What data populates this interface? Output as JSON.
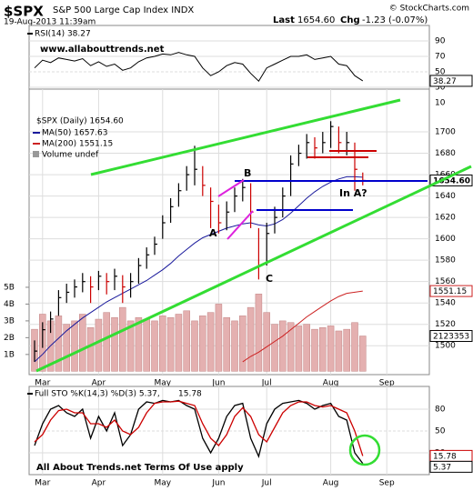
{
  "header": {
    "ticker": "$SPX",
    "name": "S&P 500 Large Cap Index INDX",
    "date": "19-Aug-2013 11:39am",
    "source": "© StockCharts.com",
    "last_label": "Last",
    "last": "1654.60",
    "chg_label": "Chg",
    "chg": "-1.23 (-0.07%)"
  },
  "chart_data": [
    {
      "type": "line",
      "legend": "RSI(14) 38.27",
      "annotation": "www.allabouttrends.net",
      "color": "#000000",
      "values": [
        55,
        65,
        62,
        68,
        66,
        64,
        67,
        58,
        63,
        57,
        60,
        52,
        55,
        63,
        68,
        70,
        73,
        72,
        75,
        72,
        70,
        55,
        45,
        50,
        58,
        62,
        60,
        48,
        38,
        55,
        60,
        65,
        70,
        70,
        72,
        66,
        68,
        70,
        60,
        58,
        45,
        38.27,
        null,
        null,
        null,
        null,
        null,
        null,
        null
      ],
      "value_label": "38.27",
      "ylim": [
        27.6,
        110
      ],
      "yticks": [
        10,
        30,
        50,
        70,
        90
      ],
      "grid": true
    },
    {
      "type": "ohlc",
      "legend": "$SPX (Daily) 1654.60",
      "categories": [
        null,
        "Mar",
        null,
        null,
        null,
        null,
        null,
        null,
        "Apr",
        null,
        null,
        null,
        null,
        null,
        null,
        null,
        "May",
        null,
        null,
        null,
        null,
        null,
        null,
        "Jun",
        null,
        null,
        null,
        null,
        null,
        "Jul",
        null,
        null,
        null,
        null,
        null,
        null,
        null,
        "Aug",
        null,
        null,
        null,
        null,
        null,
        null,
        "Sep",
        null,
        null,
        null,
        null
      ],
      "high": [
        1505,
        1522,
        1532,
        1552,
        1558,
        1562,
        1568,
        1565,
        1570,
        1568,
        1572,
        1566,
        1568,
        1582,
        1592,
        1602,
        1622,
        1638,
        1652,
        1668,
        1687,
        1668,
        1648,
        1632,
        1635,
        1648,
        1656,
        1652,
        1610,
        1615,
        1630,
        1648,
        1678,
        1688,
        1698,
        1695,
        1700,
        1710,
        1705,
        1700,
        1690,
        1662,
        null,
        null,
        null,
        null,
        null,
        null,
        null
      ],
      "low": [
        1485,
        1498,
        1512,
        1528,
        1540,
        1545,
        1550,
        1540,
        1552,
        1548,
        1552,
        1540,
        1545,
        1558,
        1572,
        1585,
        1600,
        1615,
        1630,
        1645,
        1650,
        1640,
        1610,
        1605,
        1608,
        1625,
        1635,
        1610,
        1562,
        1575,
        1605,
        1620,
        1640,
        1668,
        1675,
        1675,
        1680,
        1685,
        1680,
        1678,
        1645,
        1650,
        null,
        null,
        null,
        null,
        null,
        null,
        null
      ],
      "close": [
        1495,
        1515,
        1525,
        1545,
        1550,
        1555,
        1560,
        1555,
        1565,
        1560,
        1565,
        1555,
        1560,
        1575,
        1585,
        1595,
        1615,
        1630,
        1645,
        1660,
        1665,
        1650,
        1635,
        1615,
        1625,
        1640,
        1648,
        1625,
        1575,
        1605,
        1620,
        1640,
        1670,
        1680,
        1690,
        1685,
        1690,
        1705,
        1690,
        1690,
        1665,
        1654.6,
        null,
        null,
        null,
        null,
        null,
        null,
        null
      ],
      "up_color": "#000000",
      "down_color": "#cc0000",
      "value_label": "1654.60",
      "series": [
        {
          "name": "MA(50) 1657.63",
          "color": "#1a1a9c",
          "values": [
            1485,
            1492,
            1500,
            1507,
            1514,
            1520,
            1526,
            1531,
            1536,
            1541,
            1545,
            1549,
            1553,
            1557,
            1561,
            1566,
            1571,
            1577,
            1584,
            1590,
            1596,
            1601,
            1604,
            1607,
            1610,
            1612,
            1614,
            1615,
            1613,
            1612,
            1614,
            1618,
            1624,
            1631,
            1638,
            1644,
            1649,
            1653,
            1656,
            1658,
            1658,
            1657.63,
            null,
            null,
            null,
            null,
            null,
            null,
            null
          ]
        },
        {
          "name": "MA(200) 1551.15",
          "color": "#cc2222",
          "value_label": "1551.15",
          "values": [
            null,
            null,
            null,
            null,
            null,
            null,
            null,
            null,
            null,
            null,
            null,
            null,
            null,
            null,
            null,
            null,
            null,
            null,
            null,
            null,
            null,
            null,
            null,
            null,
            null,
            null,
            1485,
            1490,
            1494,
            1499,
            1504,
            1509,
            1515,
            1521,
            1527,
            1532,
            1537,
            1542,
            1546,
            1549,
            1550,
            1551.15,
            null,
            null,
            null,
            null,
            null,
            null,
            null
          ]
        }
      ],
      "volume": {
        "name": "Volume undef",
        "color": "#e4b0b0",
        "value_label": "2123353",
        "values": [
          2.5,
          3.4,
          3.0,
          3.3,
          2.8,
          3.0,
          3.4,
          2.6,
          3.1,
          3.5,
          3.2,
          3.8,
          3.0,
          3.2,
          3.1,
          3.0,
          3.3,
          3.2,
          3.4,
          3.6,
          3.0,
          3.3,
          3.5,
          4.0,
          3.2,
          3.0,
          3.3,
          3.8,
          4.6,
          3.5,
          2.8,
          3.0,
          2.9,
          2.7,
          2.8,
          2.5,
          2.6,
          2.7,
          2.4,
          2.5,
          2.9,
          2.1,
          null,
          null,
          null,
          null,
          null,
          null,
          null
        ]
      },
      "ylim": [
        1473,
        1740
      ],
      "yticks": [
        1500,
        1520,
        1540,
        1560,
        1580,
        1600,
        1620,
        1640,
        1660,
        1680,
        1700
      ],
      "y2lim": [
        -0.2,
        16.8
      ],
      "y2ticks": [
        {
          "value": 1,
          "label": "1B"
        },
        {
          "value": 2,
          "label": "2B"
        },
        {
          "value": 3,
          "label": "3B"
        },
        {
          "value": 4,
          "label": "4B"
        },
        {
          "value": 5,
          "label": "5B"
        }
      ],
      "annotations": [
        "A",
        "B",
        "C",
        "In A?"
      ],
      "grid": true
    },
    {
      "type": "line",
      "legend": [
        "Full STO %K(14,3) %D(3) 5.37,",
        "15.78"
      ],
      "annotation": "All About Trends.net Terms Of Use apply",
      "categories": [
        null,
        "Mar",
        null,
        null,
        null,
        null,
        null,
        null,
        "Apr",
        null,
        null,
        null,
        null,
        null,
        null,
        null,
        "May",
        null,
        null,
        null,
        null,
        null,
        null,
        "Jun",
        null,
        null,
        null,
        null,
        null,
        "Jul",
        null,
        null,
        null,
        null,
        null,
        null,
        null,
        "Aug",
        null,
        null,
        null,
        null,
        null,
        null,
        "Sep",
        null,
        null,
        null,
        null
      ],
      "series": [
        {
          "color": "#000000",
          "value_label": "5.37",
          "values": [
            30,
            60,
            80,
            85,
            75,
            70,
            80,
            40,
            70,
            50,
            75,
            30,
            45,
            80,
            90,
            88,
            92,
            90,
            92,
            85,
            80,
            40,
            20,
            40,
            70,
            85,
            88,
            40,
            15,
            60,
            80,
            88,
            90,
            92,
            88,
            80,
            85,
            88,
            70,
            65,
            20,
            5.37,
            null,
            null,
            null,
            null,
            null,
            null,
            null
          ]
        },
        {
          "color": "#cc0000",
          "value_label": "15.78",
          "values": [
            35,
            45,
            65,
            78,
            80,
            75,
            75,
            60,
            60,
            55,
            65,
            50,
            45,
            55,
            75,
            88,
            90,
            90,
            91,
            88,
            85,
            60,
            40,
            30,
            45,
            70,
            82,
            70,
            45,
            35,
            55,
            75,
            85,
            90,
            90,
            85,
            83,
            85,
            80,
            75,
            50,
            15.78,
            null,
            null,
            null,
            null,
            null,
            null,
            null
          ]
        }
      ],
      "ylim": [
        -10,
        111.25
      ],
      "yticks": [
        20,
        50,
        80
      ],
      "grid": true
    }
  ]
}
